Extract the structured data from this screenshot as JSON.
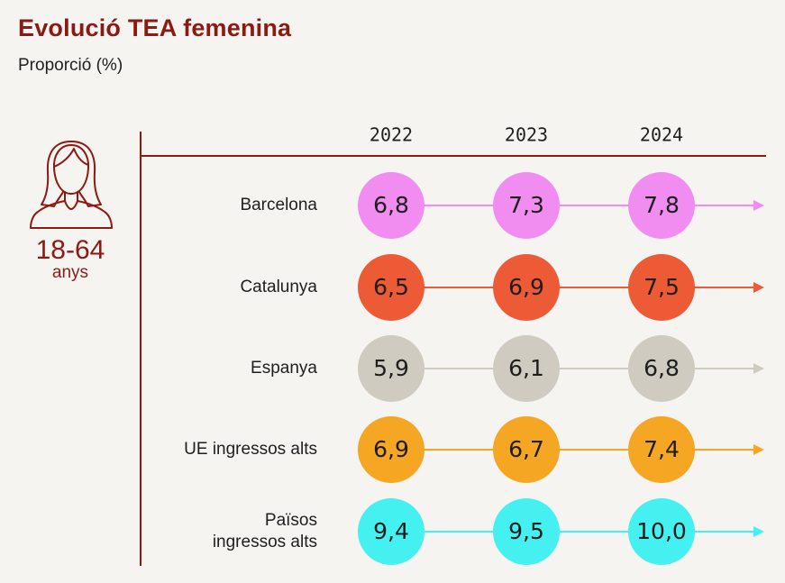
{
  "header": {
    "title": "Evolució TEA femenina",
    "subtitle": "Proporció (%)"
  },
  "side_panel": {
    "icon": "woman-icon",
    "age_range": "18-64",
    "age_unit": "anys"
  },
  "colors": {
    "accent": "#8b1a14"
  },
  "chart_data": {
    "type": "table",
    "title": "Evolució TEA femenina",
    "subtitle": "Proporció (%)",
    "categories": [
      "2022",
      "2023",
      "2024"
    ],
    "series": [
      {
        "name": "Barcelona",
        "label_lines": [
          "Barcelona"
        ],
        "values": [
          6.8,
          7.3,
          7.8
        ],
        "display": [
          "6,8",
          "7,3",
          "7,8"
        ],
        "color": "#f18df0"
      },
      {
        "name": "Catalunya",
        "label_lines": [
          "Catalunya"
        ],
        "values": [
          6.5,
          6.9,
          7.5
        ],
        "display": [
          "6,5",
          "6,9",
          "7,5"
        ],
        "color": "#ec5b35"
      },
      {
        "name": "Espanya",
        "label_lines": [
          "Espanya"
        ],
        "values": [
          5.9,
          6.1,
          6.8
        ],
        "display": [
          "5,9",
          "6,1",
          "6,8"
        ],
        "color": "#cfcbc1"
      },
      {
        "name": "UE ingressos alts",
        "label_lines": [
          "UE ingressos alts"
        ],
        "values": [
          6.9,
          6.7,
          7.4
        ],
        "display": [
          "6,9",
          "6,7",
          "7,4"
        ],
        "color": "#f5a623"
      },
      {
        "name": "Països ingressos alts",
        "label_lines": [
          "Països",
          "ingressos alts"
        ],
        "values": [
          9.4,
          9.5,
          10.0
        ],
        "display": [
          "9,4",
          "9,5",
          "10,0"
        ],
        "color": "#45f0f0"
      }
    ]
  }
}
